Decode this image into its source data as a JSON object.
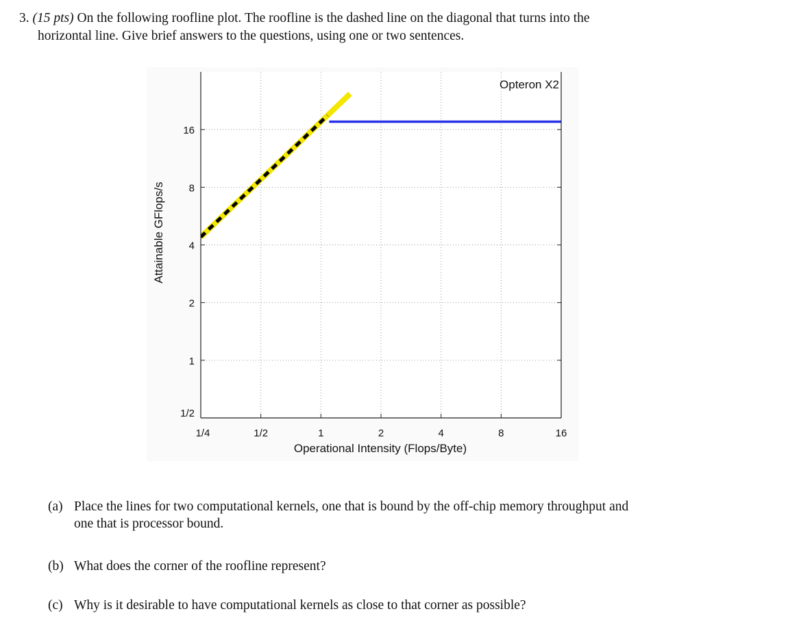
{
  "question": {
    "number": "3.",
    "points": "(15 pts)",
    "text_line1": "On the following roofline plot.  The roofline is the dashed line on the diagonal that turns into the",
    "text_line2": "horizontal line. Give brief answers to the questions, using one or two sentences."
  },
  "chart_data": {
    "type": "line",
    "title": "",
    "xlabel": "Operational Intensity (Flops/Byte)",
    "ylabel": "Attainable GFlops/s",
    "x_scale": "log2",
    "y_scale": "log2",
    "xlim": [
      0.25,
      16
    ],
    "ylim": [
      0.5,
      32
    ],
    "x_ticks": [
      0.25,
      0.5,
      1,
      2,
      4,
      8,
      16
    ],
    "x_tick_labels": [
      "1/4",
      "1/2",
      "1",
      "2",
      "4",
      "8",
      "16"
    ],
    "y_ticks": [
      0.5,
      1,
      2,
      4,
      8,
      16
    ],
    "y_tick_labels": [
      "1/2",
      "1",
      "2",
      "4",
      "8",
      "16"
    ],
    "grid": "dotted",
    "annotation": "Opteron X2",
    "series": [
      {
        "style": "diagonal dashed black over yellow",
        "color": "#f3e600",
        "dash_color": "#000000",
        "x": [
          0.25,
          1.4
        ],
        "y": [
          4.4,
          24.6
        ]
      },
      {
        "style": "horizontal solid",
        "color": "#2630e8",
        "x": [
          1.1,
          16
        ],
        "y": [
          17.6,
          17.6
        ]
      }
    ]
  },
  "subquestions": [
    {
      "label": "(a)",
      "line1": "Place the lines for two computational kernels, one that is bound by the off-chip memory throughput and",
      "line2": "one that is processor bound."
    },
    {
      "label": "(b)",
      "line1": "What does the corner of the roofline represent?"
    },
    {
      "label": "(c)",
      "line1": "Why is it desirable to have computational kernels as close to that corner as possible?"
    }
  ]
}
